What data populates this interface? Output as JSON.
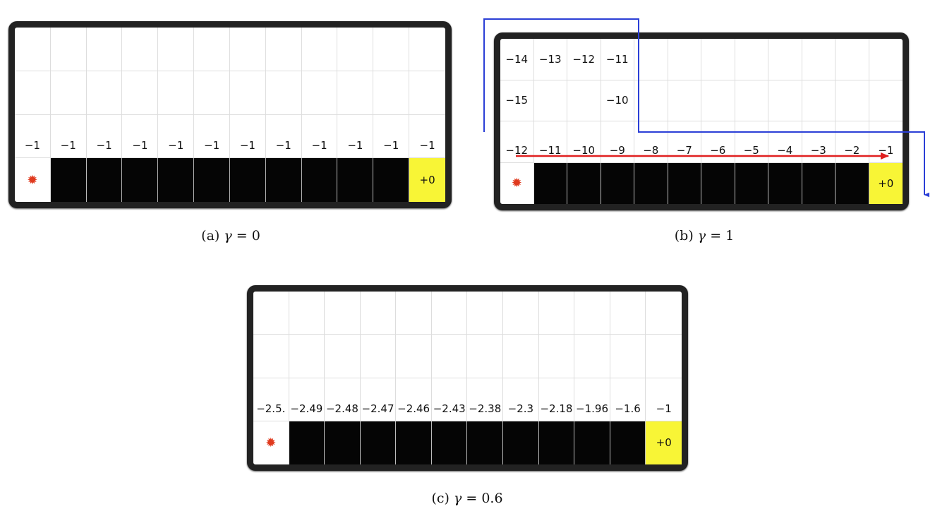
{
  "panels": [
    {
      "id": "a",
      "caption_label": "(a)",
      "caption_symbol": "γ",
      "caption_value": "= 0",
      "rows": [
        [
          "",
          "",
          "",
          "",
          "",
          "",
          "",
          "",
          "",
          "",
          "",
          ""
        ],
        [
          "",
          "",
          "",
          "",
          "",
          "",
          "",
          "",
          "",
          "",
          "",
          ""
        ],
        [
          "−1",
          "−1",
          "−1",
          "−1",
          "−1",
          "−1",
          "−1",
          "−1",
          "−1",
          "−1",
          "−1",
          "−1"
        ]
      ],
      "goal_label": "+0"
    },
    {
      "id": "b",
      "caption_label": "(b)",
      "caption_symbol": "γ",
      "caption_value": "= 1",
      "rows": [
        [
          "−14",
          "−13",
          "−12",
          "−11",
          "",
          "",
          "",
          "",
          "",
          "",
          "",
          ""
        ],
        [
          "−15",
          "",
          "",
          "−10",
          "",
          "",
          "",
          "",
          "",
          "",
          "",
          ""
        ],
        [
          "−12",
          "−11",
          "−10",
          "−9",
          "−8",
          "−7",
          "−6",
          "−5",
          "−4",
          "−3",
          "−2",
          "−1"
        ]
      ],
      "goal_label": "+0"
    },
    {
      "id": "c",
      "caption_label": "(c)",
      "caption_symbol": "γ",
      "caption_value": "= 0.6",
      "rows": [
        [
          "",
          "",
          "",
          "",
          "",
          "",
          "",
          "",
          "",
          "",
          "",
          ""
        ],
        [
          "",
          "",
          "",
          "",
          "",
          "",
          "",
          "",
          "",
          "",
          "",
          ""
        ],
        [
          "−2.5.",
          "−2.49",
          "−2.48",
          "−2.47",
          "−2.46",
          "−2.43",
          "−2.38",
          "−2.3",
          "−2.18",
          "−1.96",
          "−1.6",
          "−1"
        ]
      ],
      "goal_label": "+0"
    }
  ],
  "colors": {
    "cliff": "#050505",
    "goal": "#f8f536",
    "agent": "#e03a1e",
    "safe_path": "#2b3fd6",
    "optimal_path": "#e02020"
  },
  "icons": {
    "agent": "turtle-icon"
  }
}
